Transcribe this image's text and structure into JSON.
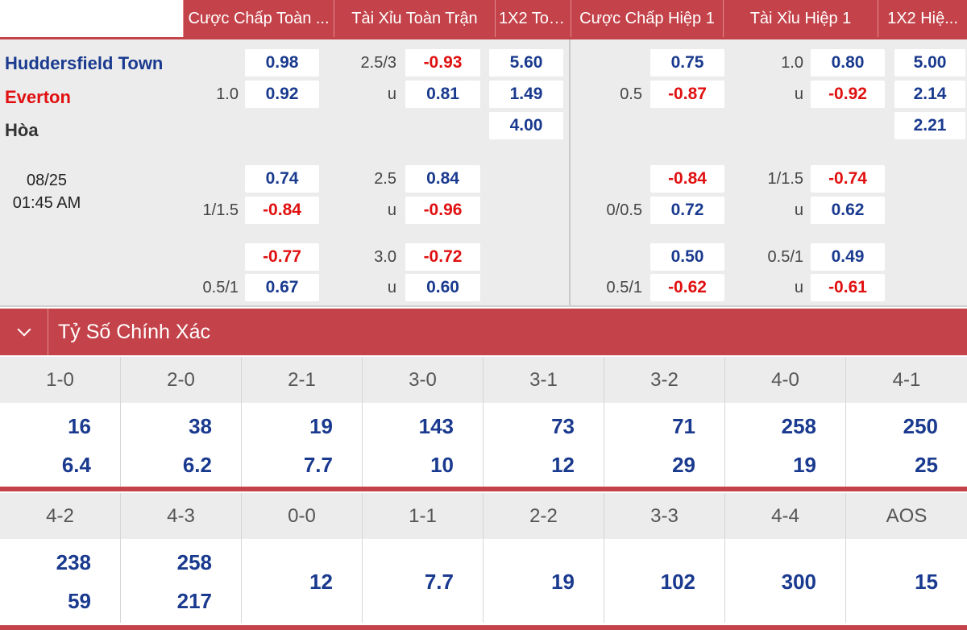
{
  "header": {
    "columns": [
      "Cược Chấp Toàn ...",
      "Tài Xỉu Toàn Trận",
      "1X2 Toà...",
      "Cược Chấp Hiệp 1",
      "Tài Xỉu Hiệp 1",
      "1X2 Hiệ..."
    ]
  },
  "match": {
    "home": "Huddersfield Town",
    "away": "Everton",
    "draw": "Hòa",
    "date": "08/25",
    "time": "01:45 AM"
  },
  "odds": {
    "row1": {
      "ft_hdp_line": "1.0",
      "ft_hdp_home": "0.98",
      "ft_hdp_away": "0.92",
      "ft_ou_line": "2.5/3",
      "ft_ou_u": "u",
      "ft_ou_over": "-0.93",
      "ft_ou_under": "0.81",
      "ft_1x2_1": "5.60",
      "ft_1x2_2": "1.49",
      "ft_1x2_x": "4.00",
      "h1_hdp_line": "0.5",
      "h1_hdp_home": "0.75",
      "h1_hdp_away": "-0.87",
      "h1_ou_line": "1.0",
      "h1_ou_u": "u",
      "h1_ou_over": "0.80",
      "h1_ou_under": "-0.92",
      "h1_1x2_1": "5.00",
      "h1_1x2_2": "2.14",
      "h1_1x2_x": "2.21"
    },
    "row2": {
      "ft_hdp_line": "1/1.5",
      "ft_hdp_home": "0.74",
      "ft_hdp_away": "-0.84",
      "ft_ou_line": "2.5",
      "ft_ou_u": "u",
      "ft_ou_over": "0.84",
      "ft_ou_under": "-0.96",
      "h1_hdp_line": "0/0.5",
      "h1_hdp_home": "-0.84",
      "h1_hdp_away": "0.72",
      "h1_ou_line": "1/1.5",
      "h1_ou_u": "u",
      "h1_ou_over": "-0.74",
      "h1_ou_under": "0.62"
    },
    "row3": {
      "ft_hdp_line": "0.5/1",
      "ft_hdp_home": "-0.77",
      "ft_hdp_away": "0.67",
      "ft_ou_line": "3.0",
      "ft_ou_u": "u",
      "ft_ou_over": "-0.72",
      "ft_ou_under": "0.60",
      "h1_hdp_line": "0.5/1",
      "h1_hdp_home": "0.50",
      "h1_hdp_away": "-0.62",
      "h1_ou_line": "0.5/1",
      "h1_ou_u": "u",
      "h1_ou_over": "0.49",
      "h1_ou_under": "-0.61"
    }
  },
  "exact_score": {
    "title": "Tỷ Số Chính Xác",
    "row1": [
      {
        "score": "1-0",
        "a": "16",
        "b": "6.4"
      },
      {
        "score": "2-0",
        "a": "38",
        "b": "6.2"
      },
      {
        "score": "2-1",
        "a": "19",
        "b": "7.7"
      },
      {
        "score": "3-0",
        "a": "143",
        "b": "10"
      },
      {
        "score": "3-1",
        "a": "73",
        "b": "12"
      },
      {
        "score": "3-2",
        "a": "71",
        "b": "29"
      },
      {
        "score": "4-0",
        "a": "258",
        "b": "19"
      },
      {
        "score": "4-1",
        "a": "250",
        "b": "25"
      }
    ],
    "row2": [
      {
        "score": "4-2",
        "a": "238",
        "b": "59"
      },
      {
        "score": "4-3",
        "a": "258",
        "b": "217"
      },
      {
        "score": "0-0",
        "c": "12"
      },
      {
        "score": "1-1",
        "c": "7.7"
      },
      {
        "score": "2-2",
        "c": "19"
      },
      {
        "score": "3-3",
        "c": "102"
      },
      {
        "score": "4-4",
        "c": "300"
      },
      {
        "score": "AOS",
        "c": "15"
      }
    ]
  },
  "colors": {
    "accent": "#c4434a",
    "positive": "#1a3a8f",
    "negative": "#e01010"
  }
}
